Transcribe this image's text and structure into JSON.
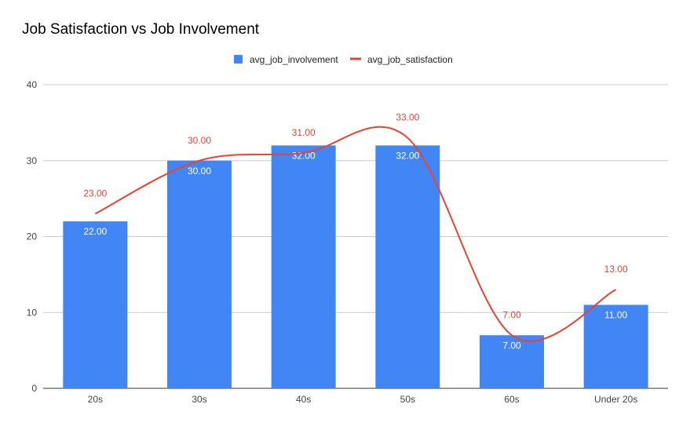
{
  "chart_data": {
    "type": "bar",
    "title": "Job Satisfaction vs Job Involvement",
    "categories": [
      "20s",
      "30s",
      "40s",
      "50s",
      "60s",
      "Under 20s"
    ],
    "series": [
      {
        "name": "avg_job_involvement",
        "type": "bar",
        "color": "#4285f4",
        "values": [
          22,
          30,
          32,
          32,
          7,
          11
        ],
        "labels": [
          "22.00",
          "30.00",
          "32.00",
          "32.00",
          "7.00",
          "11.00"
        ]
      },
      {
        "name": "avg_job_satisfaction",
        "type": "line",
        "smooth": true,
        "color": "#ea4335",
        "values": [
          23,
          30,
          31,
          33,
          7,
          13
        ],
        "labels": [
          "23.00",
          "30.00",
          "31.00",
          "33.00",
          "7.00",
          "13.00"
        ]
      }
    ],
    "yticks": [
      "0",
      "10",
      "20",
      "30",
      "40"
    ],
    "ylim": [
      0,
      40
    ],
    "grid": true,
    "legend": "top-center"
  }
}
